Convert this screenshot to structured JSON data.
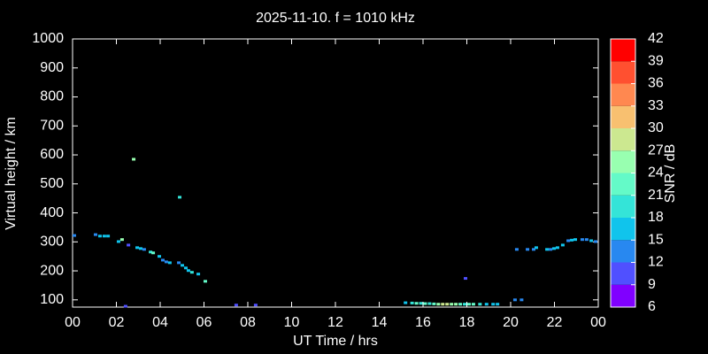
{
  "chart_data": {
    "type": "scatter",
    "title": "2025-11-10. f = 1010 kHz",
    "x_label": "UT Time / hrs",
    "y_label": "Virtual height / km",
    "xlim": [
      0,
      24
    ],
    "ylim": [
      75,
      1000
    ],
    "xticks": [
      {
        "value": 0,
        "label": "00"
      },
      {
        "value": 2,
        "label": "02"
      },
      {
        "value": 4,
        "label": "04"
      },
      {
        "value": 6,
        "label": "06"
      },
      {
        "value": 8,
        "label": "08"
      },
      10,
      12,
      14,
      16,
      18,
      20,
      22,
      {
        "value": 24,
        "label": "00"
      }
    ],
    "yticks": [
      100,
      200,
      300,
      400,
      500,
      600,
      700,
      800,
      900,
      1000
    ],
    "grid": false,
    "colorbar": {
      "label": "SNR / dB",
      "ticks": [
        6,
        9,
        12,
        15,
        18,
        21,
        24,
        27,
        30,
        33,
        36,
        39,
        42
      ],
      "colors": [
        "#8000ff",
        "#5050ff",
        "#2888f0",
        "#10c4ec",
        "#34e4d8",
        "#64fac8",
        "#98ffb0",
        "#cce890",
        "#f8c070",
        "#ff8850",
        "#ff5030",
        "#ff0000"
      ]
    },
    "series": [
      {
        "x": [
          0.08,
          1.05,
          1.25,
          1.45,
          1.62,
          2.1,
          2.26,
          2.42,
          2.55,
          2.79,
          2.95,
          3.11,
          3.27,
          3.56,
          3.68,
          3.96,
          4.12,
          4.28,
          4.44,
          4.85,
          4.89,
          5.01,
          5.17,
          5.29,
          5.45,
          5.74,
          6.06,
          7.47,
          8.36,
          15.2,
          15.5,
          15.7,
          15.9,
          16.1,
          16.3,
          16.5,
          16.7,
          16.9,
          17.1,
          17.3,
          17.5,
          17.7,
          17.9,
          18.1,
          18.3,
          18.6,
          18.9,
          19.2,
          19.4,
          17.94,
          20.2,
          20.5,
          20.28,
          20.77,
          21.05,
          21.17,
          21.66,
          21.82,
          21.98,
          22.14,
          22.38,
          22.63,
          22.79,
          22.95,
          23.27,
          23.47,
          23.68,
          23.88
        ],
        "y": [
          322,
          325,
          320,
          320,
          320,
          301,
          308,
          78,
          289,
          585,
          280,
          277,
          274,
          265,
          262,
          250,
          237,
          231,
          228,
          228,
          454,
          219,
          210,
          201,
          195,
          189,
          164,
          82,
          82,
          90,
          89,
          88,
          88,
          87,
          87,
          86,
          85,
          85,
          85,
          85,
          85,
          85,
          85,
          85,
          85,
          85,
          85,
          85,
          85,
          174,
          100,
          100,
          274,
          274,
          274,
          280,
          274,
          274,
          277,
          280,
          289,
          304,
          306,
          308,
          308,
          308,
          304,
          301
        ],
        "snr": [
          13,
          12,
          15,
          17,
          16,
          16,
          24,
          10,
          11,
          24,
          15,
          16,
          14,
          18,
          21,
          15,
          14,
          13,
          15,
          14,
          20,
          16,
          17,
          15,
          18,
          16,
          22,
          10,
          10,
          17,
          19,
          21,
          18,
          22,
          19,
          23,
          25,
          27,
          28,
          26,
          24,
          22,
          20,
          23,
          21,
          18,
          16,
          17,
          15,
          11,
          13,
          13,
          14,
          14,
          13,
          16,
          15,
          14,
          15,
          16,
          17,
          14,
          16,
          15,
          13,
          14,
          15,
          14
        ]
      }
    ]
  }
}
